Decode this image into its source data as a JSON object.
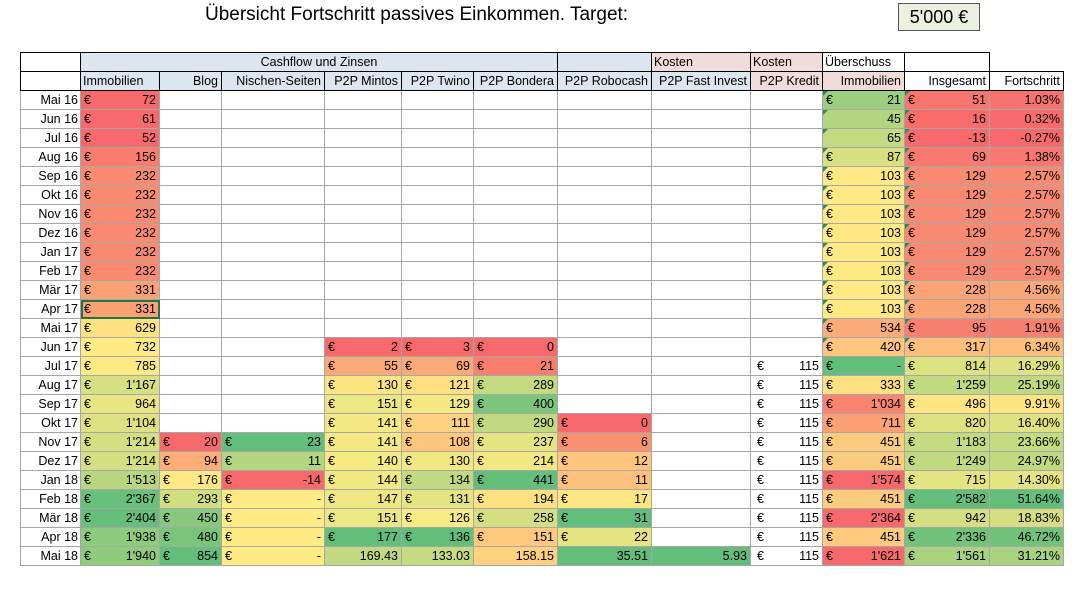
{
  "title": "Übersicht Fortschritt passives Einkommen. Target:",
  "target": "5'000 €",
  "headers": {
    "row1": {
      "cashflow": "Cashflow und Zinsen",
      "kosten1": "Kosten",
      "kosten2": "Kosten",
      "ueberschuss": "Überschuss"
    },
    "row2": [
      "Immobilien",
      "Blog",
      "Nischen-Seiten",
      "P2P Mintos",
      "P2P Twino",
      "P2P Bondera",
      "P2P Robocash",
      "P2P Fast Invest",
      "P2P Kredit",
      "Immobilien",
      "Insgesamt",
      "Fortschritt"
    ]
  },
  "colors": {
    "red": "#f8696b",
    "green": "#63be7b",
    "yellow": "#ffeb84",
    "headerBlue": "#dce6f1",
    "headerPink": "#f2dcdb"
  },
  "rows": [
    {
      "label": "Mai 16",
      "cells": [
        [
          "€",
          "72",
          "#f8696b"
        ],
        null,
        null,
        null,
        null,
        null,
        null,
        null,
        null,
        [
          "€",
          "21",
          "#9bcf7f"
        ],
        [
          "€",
          "51",
          "#f8756e"
        ],
        [
          "",
          "1.03%",
          "#f8736d"
        ]
      ]
    },
    {
      "label": "Jun 16",
      "cells": [
        [
          "€",
          "61",
          "#f8696b"
        ],
        null,
        null,
        null,
        null,
        null,
        null,
        null,
        null,
        [
          "",
          "45",
          "#b1d580"
        ],
        [
          "€",
          "16",
          "#f86d6c"
        ],
        [
          "",
          "0.32%",
          "#f86b6c"
        ]
      ]
    },
    {
      "label": "Jul 16",
      "cells": [
        [
          "€",
          "52",
          "#f8696b"
        ],
        null,
        null,
        null,
        null,
        null,
        null,
        null,
        null,
        [
          "",
          "65",
          "#c3da81"
        ],
        [
          "€",
          "-13",
          "#f8696b"
        ],
        [
          "",
          "-0.27%",
          "#f8696b"
        ]
      ]
    },
    {
      "label": "Aug 16",
      "cells": [
        [
          "€",
          "156",
          "#f97c6e"
        ],
        null,
        null,
        null,
        null,
        null,
        null,
        null,
        null,
        [
          "€",
          "87",
          "#d7e082"
        ],
        [
          "€",
          "69",
          "#f8796f"
        ],
        [
          "",
          "1.38%",
          "#f87770"
        ]
      ]
    },
    {
      "label": "Sep 16",
      "cells": [
        [
          "€",
          "232",
          "#fa8b71"
        ],
        null,
        null,
        null,
        null,
        null,
        null,
        null,
        null,
        [
          "€",
          "103",
          "#ffe984"
        ],
        [
          "€",
          "129",
          "#f98a72"
        ],
        [
          "",
          "2.57%",
          "#f98b73"
        ]
      ]
    },
    {
      "label": "Okt 16",
      "cells": [
        [
          "€",
          "232",
          "#fa8b71"
        ],
        null,
        null,
        null,
        null,
        null,
        null,
        null,
        null,
        [
          "€",
          "103",
          "#ffe984"
        ],
        [
          "€",
          "129",
          "#f98a72"
        ],
        [
          "",
          "2.57%",
          "#f98b73"
        ]
      ]
    },
    {
      "label": "Nov 16",
      "cells": [
        [
          "€",
          "232",
          "#fa8b71"
        ],
        null,
        null,
        null,
        null,
        null,
        null,
        null,
        null,
        [
          "€",
          "103",
          "#ffe984"
        ],
        [
          "€",
          "129",
          "#f98a72"
        ],
        [
          "",
          "2.57%",
          "#f98b73"
        ]
      ]
    },
    {
      "label": "Dez 16",
      "cells": [
        [
          "€",
          "232",
          "#fa8b71"
        ],
        null,
        null,
        null,
        null,
        null,
        null,
        null,
        null,
        [
          "€",
          "103",
          "#ffe984"
        ],
        [
          "€",
          "129",
          "#f98a72"
        ],
        [
          "",
          "2.57%",
          "#f98b73"
        ]
      ]
    },
    {
      "label": "Jan 17",
      "cells": [
        [
          "€",
          "232",
          "#fa8b71"
        ],
        null,
        null,
        null,
        null,
        null,
        null,
        null,
        null,
        [
          "€",
          "103",
          "#ffe984"
        ],
        [
          "€",
          "129",
          "#f98a72"
        ],
        [
          "",
          "2.57%",
          "#f98b73"
        ]
      ]
    },
    {
      "label": "Feb 17",
      "cells": [
        [
          "€",
          "232",
          "#fa8b71"
        ],
        null,
        null,
        null,
        null,
        null,
        null,
        null,
        null,
        [
          "€",
          "103",
          "#ffe984"
        ],
        [
          "€",
          "129",
          "#f98a72"
        ],
        [
          "",
          "2.57%",
          "#f98b73"
        ]
      ]
    },
    {
      "label": "Mär 17",
      "cells": [
        [
          "€",
          "331",
          "#fba275"
        ],
        null,
        null,
        null,
        null,
        null,
        null,
        null,
        null,
        [
          "€",
          "103",
          "#ffe984"
        ],
        [
          "€",
          "228",
          "#fba476"
        ],
        [
          "",
          "4.56%",
          "#fba676"
        ]
      ]
    },
    {
      "label": "Apr 17",
      "cells": [
        [
          "€",
          "331",
          "#fba275"
        ],
        null,
        null,
        null,
        null,
        null,
        null,
        null,
        null,
        [
          "€",
          "103",
          "#ffe984"
        ],
        [
          "€",
          "228",
          "#fba476"
        ],
        [
          "",
          "4.56%",
          "#fba676"
        ]
      ]
    },
    {
      "label": "Mai 17",
      "cells": [
        [
          "€",
          "629",
          "#ffe383"
        ],
        null,
        null,
        null,
        null,
        null,
        null,
        null,
        null,
        [
          "€",
          "534",
          "#fcac78"
        ],
        [
          "€",
          "95",
          "#f98070"
        ],
        [
          "",
          "1.91%",
          "#f9806f"
        ]
      ]
    },
    {
      "label": "Jun 17",
      "cells": [
        [
          "€",
          "732",
          "#ffea84"
        ],
        null,
        null,
        [
          "€",
          "2",
          "#f8696b"
        ],
        [
          "€",
          "3",
          "#f8696b"
        ],
        [
          "€",
          "0",
          "#f8696b"
        ],
        null,
        null,
        null,
        [
          "€",
          "420",
          "#fdc57d"
        ],
        [
          "€",
          "317",
          "#fcbf7b"
        ],
        [
          "",
          "6.34%",
          "#fcbf7b"
        ]
      ]
    },
    {
      "label": "Jul 17",
      "cells": [
        [
          "€",
          "785",
          "#feea83"
        ],
        null,
        null,
        [
          "€",
          "55",
          "#fba976"
        ],
        [
          "€",
          "69",
          "#fba976"
        ],
        [
          "€",
          "21",
          "#f97e6e"
        ],
        null,
        null,
        [
          "€",
          "115",
          ""
        ],
        [
          "€",
          "-",
          "#63be7b"
        ],
        [
          "€",
          "814",
          "#dde281"
        ],
        [
          "",
          "16.29%",
          "#dfe282"
        ]
      ]
    },
    {
      "label": "Aug 17",
      "cells": [
        [
          "€",
          "1'167",
          "#d6df81"
        ],
        null,
        null,
        [
          "€",
          "130",
          "#fee583"
        ],
        [
          "€",
          "121",
          "#fee082"
        ],
        [
          "€",
          "289",
          "#c4da80"
        ],
        null,
        null,
        [
          "€",
          "115",
          ""
        ],
        [
          "€",
          "333",
          "#fde082"
        ],
        [
          "€",
          "1'259",
          "#c1d980"
        ],
        [
          "",
          "25.19%",
          "#c1d980"
        ]
      ]
    },
    {
      "label": "Sep 17",
      "cells": [
        [
          "€",
          "964",
          "#e9e583"
        ],
        null,
        null,
        [
          "€",
          "151",
          "#ebe783"
        ],
        [
          "€",
          "129",
          "#f6e983"
        ],
        [
          "€",
          "400",
          "#7ec57c"
        ],
        null,
        null,
        [
          "€",
          "115",
          ""
        ],
        [
          "€",
          "1'034",
          "#f98570"
        ],
        [
          "€",
          "496",
          "#fee482"
        ],
        [
          "",
          "9.91%",
          "#fee382"
        ]
      ]
    },
    {
      "label": "Okt 17",
      "cells": [
        [
          "€",
          "1'104",
          "#dde182"
        ],
        null,
        null,
        [
          "€",
          "141",
          "#f5e983"
        ],
        [
          "€",
          "111",
          "#fed07f"
        ],
        [
          "€",
          "290",
          "#c3d980"
        ],
        [
          "€",
          "0",
          "#f8696b"
        ],
        null,
        [
          "€",
          "115",
          ""
        ],
        [
          "€",
          "711",
          "#fca176"
        ],
        [
          "€",
          "820",
          "#dde281"
        ],
        [
          "",
          "16.40%",
          "#dee281"
        ]
      ]
    },
    {
      "label": "Nov 17",
      "cells": [
        [
          "€",
          "1'214",
          "#d4df81"
        ],
        [
          "€",
          "20",
          "#f8696b"
        ],
        [
          "€",
          "23",
          "#63be7b"
        ],
        [
          "€",
          "141",
          "#f5e983"
        ],
        [
          "€",
          "108",
          "#fec77d"
        ],
        [
          "€",
          "237",
          "#e4e482"
        ],
        [
          "€",
          "6",
          "#f99070"
        ],
        null,
        [
          "€",
          "115",
          ""
        ],
        [
          "€",
          "451",
          "#fdcb7e"
        ],
        [
          "€",
          "1'183",
          "#c6da80"
        ],
        [
          "",
          "23.66%",
          "#c6da80"
        ]
      ]
    },
    {
      "label": "Dez 17",
      "cells": [
        [
          "€",
          "1'214",
          "#d4df81"
        ],
        [
          "€",
          "94",
          "#fbae78"
        ],
        [
          "€",
          "11",
          "#b2d580"
        ],
        [
          "€",
          "140",
          "#f6ea83"
        ],
        [
          "€",
          "130",
          "#f1e883"
        ],
        [
          "€",
          "214",
          "#f2e883"
        ],
        [
          "€",
          "12",
          "#fdc57d"
        ],
        null,
        [
          "€",
          "115",
          ""
        ],
        [
          "€",
          "451",
          "#fdcb7e"
        ],
        [
          "€",
          "1'249",
          "#c1d980"
        ],
        [
          "",
          "24.97%",
          "#c2d980"
        ]
      ]
    },
    {
      "label": "Jan 18",
      "cells": [
        [
          "€",
          "1'513",
          "#b7d67f"
        ],
        [
          "€",
          "176",
          "#fee883"
        ],
        [
          "€",
          "-14",
          "#f8696b"
        ],
        [
          "€",
          "144",
          "#f2e883"
        ],
        [
          "€",
          "134",
          "#c1d980"
        ],
        [
          "€",
          "441",
          "#63be7b"
        ],
        [
          "€",
          "11",
          "#fdc17c"
        ],
        null,
        [
          "€",
          "115",
          ""
        ],
        [
          "€",
          "1'574",
          "#f8696b"
        ],
        [
          "€",
          "715",
          "#e5e482"
        ],
        [
          "",
          "14.30%",
          "#e5e482"
        ]
      ]
    },
    {
      "label": "Feb 18",
      "cells": [
        [
          "€",
          "2'367",
          "#69c07b"
        ],
        [
          "€",
          "293",
          "#d0dd81"
        ],
        [
          "€",
          "-",
          "#ffeb84"
        ],
        [
          "€",
          "147",
          "#eee783"
        ],
        [
          "€",
          "131",
          "#e4e482"
        ],
        [
          "€",
          "194",
          "#fee182"
        ],
        [
          "€",
          "17",
          "#fee683"
        ],
        null,
        [
          "€",
          "115",
          ""
        ],
        [
          "€",
          "451",
          "#fdcb7e"
        ],
        [
          "€",
          "2'582",
          "#63be7b"
        ],
        [
          "",
          "51.64%",
          "#63be7b"
        ]
      ]
    },
    {
      "label": "Mär 18",
      "cells": [
        [
          "€",
          "2'404",
          "#65bf7b"
        ],
        [
          "€",
          "450",
          "#87c87d"
        ],
        [
          "€",
          "-",
          "#ffeb84"
        ],
        [
          "€",
          "151",
          "#ebe783"
        ],
        [
          "€",
          "126",
          "#f8ea84"
        ],
        [
          "€",
          "258",
          "#d5df81"
        ],
        [
          "€",
          "31",
          "#63be7b"
        ],
        null,
        [
          "€",
          "115",
          ""
        ],
        [
          "€",
          "2'364",
          "#f8696b"
        ],
        [
          "€",
          "942",
          "#d4df81"
        ],
        [
          "",
          "18.83%",
          "#d5df81"
        ]
      ]
    },
    {
      "label": "Apr 18",
      "cells": [
        [
          "€",
          "1'938",
          "#8ecb7d"
        ],
        [
          "€",
          "480",
          "#7ac47c"
        ],
        [
          "€",
          "-",
          "#ffeb84"
        ],
        [
          "€",
          "177",
          "#63be7b"
        ],
        [
          "€",
          "136",
          "#63be7b"
        ],
        [
          "€",
          "151",
          "#fec97e"
        ],
        [
          "€",
          "22",
          "#e6e382"
        ],
        null,
        [
          "€",
          "115",
          ""
        ],
        [
          "€",
          "451",
          "#fdcb7e"
        ],
        [
          "€",
          "2'336",
          "#72c27b"
        ],
        [
          "",
          "46.72%",
          "#72c27b"
        ]
      ]
    },
    {
      "label": "Mai 18",
      "cells": [
        [
          "€",
          "1'940",
          "#8ecb7d"
        ],
        [
          "€",
          "854",
          "#63be7b"
        ],
        [
          "€",
          "-",
          "#ffeb84"
        ],
        [
          "",
          "169.43",
          "#c1d980"
        ],
        [
          "",
          "133.03",
          "#c6db80"
        ],
        [
          "",
          "158.15",
          "#fed07f"
        ],
        [
          "",
          "35.51",
          "#63be7b"
        ],
        [
          "",
          "5.93",
          "#63be7b"
        ],
        [
          "€",
          "115",
          ""
        ],
        [
          "€",
          "1'621",
          "#f8696b"
        ],
        [
          "€",
          "1'561",
          "#a8d27f"
        ],
        [
          "",
          "31.21%",
          "#a8d27f"
        ]
      ]
    }
  ]
}
